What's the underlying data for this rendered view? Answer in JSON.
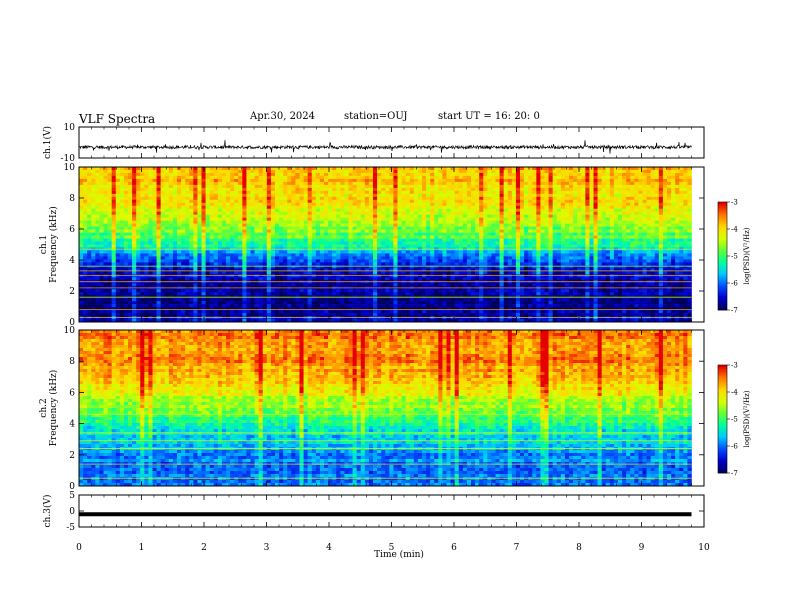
{
  "header": {
    "title": "VLF Spectra",
    "date": "Apr.30, 2024",
    "station": "station=OUJ",
    "start": "start  UT =   16: 20: 0"
  },
  "colors": {
    "colormap": [
      "#00005a",
      "#0000d0",
      "#0050ff",
      "#00c8ff",
      "#00ff9c",
      "#64ff32",
      "#d7ff00",
      "#ffd700",
      "#ff7800",
      "#e60000",
      "#ffffff"
    ],
    "trace": "#000000"
  },
  "chart_data": [
    {
      "type": "line",
      "panel": "ch1-waveform",
      "ylabel": "ch.1(V)",
      "ylim": [
        -10,
        10
      ],
      "yticks": [
        "10",
        "-10"
      ],
      "xlim": [
        0,
        10
      ],
      "x_end_min": 9.8,
      "approx_level_V": -3,
      "approx_spread_V": 1
    },
    {
      "type": "heatmap",
      "panel": "ch1-spectrogram",
      "ylabel": "ch.1\nFrequency (kHz)",
      "ylim": [
        0,
        10
      ],
      "yticks": [
        "0",
        "2",
        "4",
        "6",
        "8",
        "10"
      ],
      "xlim": [
        0,
        10
      ],
      "x_end_min": 9.8,
      "colorbar": {
        "label": "log(PSD)(V²/Hz)",
        "range": [
          -7,
          -3
        ],
        "ticks": [
          "-3",
          "-4",
          "-5",
          "-6",
          "-7"
        ]
      },
      "profile_freq_kHz": [
        0.3,
        1.0,
        2.0,
        3.0,
        4.0,
        4.7,
        5.5,
        6.5,
        7.5,
        8.5,
        9.5
      ],
      "profile_log_psd": [
        -6.6,
        -6.9,
        -6.8,
        -6.6,
        -6.2,
        -5.4,
        -4.9,
        -4.5,
        -4.2,
        -3.9,
        -3.8
      ]
    },
    {
      "type": "heatmap",
      "panel": "ch2-spectrogram",
      "ylabel": "ch.2\nFrequency (kHz)",
      "ylim": [
        0,
        10
      ],
      "yticks": [
        "0",
        "2",
        "4",
        "6",
        "8",
        "10"
      ],
      "xlim": [
        0,
        10
      ],
      "x_end_min": 9.8,
      "colorbar": {
        "label": "log(PSD)(V²/Hz)",
        "range": [
          -7,
          -3
        ],
        "ticks": [
          "-3",
          "-4",
          "-5",
          "-6",
          "-7"
        ]
      },
      "profile_freq_kHz": [
        0.3,
        1.0,
        2.0,
        3.0,
        4.0,
        5.0,
        6.0,
        7.0,
        8.0,
        9.0,
        9.8
      ],
      "profile_log_psd": [
        -6.0,
        -6.0,
        -5.9,
        -5.6,
        -5.2,
        -4.7,
        -4.2,
        -3.8,
        -3.6,
        -3.5,
        -3.5
      ]
    },
    {
      "type": "line",
      "panel": "ch3-waveform",
      "ylabel": "ch.3(V)",
      "ylim": [
        -5,
        5
      ],
      "yticks": [
        "5",
        "0",
        "-5"
      ],
      "xlim": [
        0,
        10
      ],
      "x_end_min": 9.8,
      "approx_level_V": -1.0,
      "xlabel": "Time  (min)",
      "xticks": [
        "0",
        "1",
        "2",
        "3",
        "4",
        "5",
        "6",
        "7",
        "8",
        "9",
        "10"
      ]
    }
  ]
}
